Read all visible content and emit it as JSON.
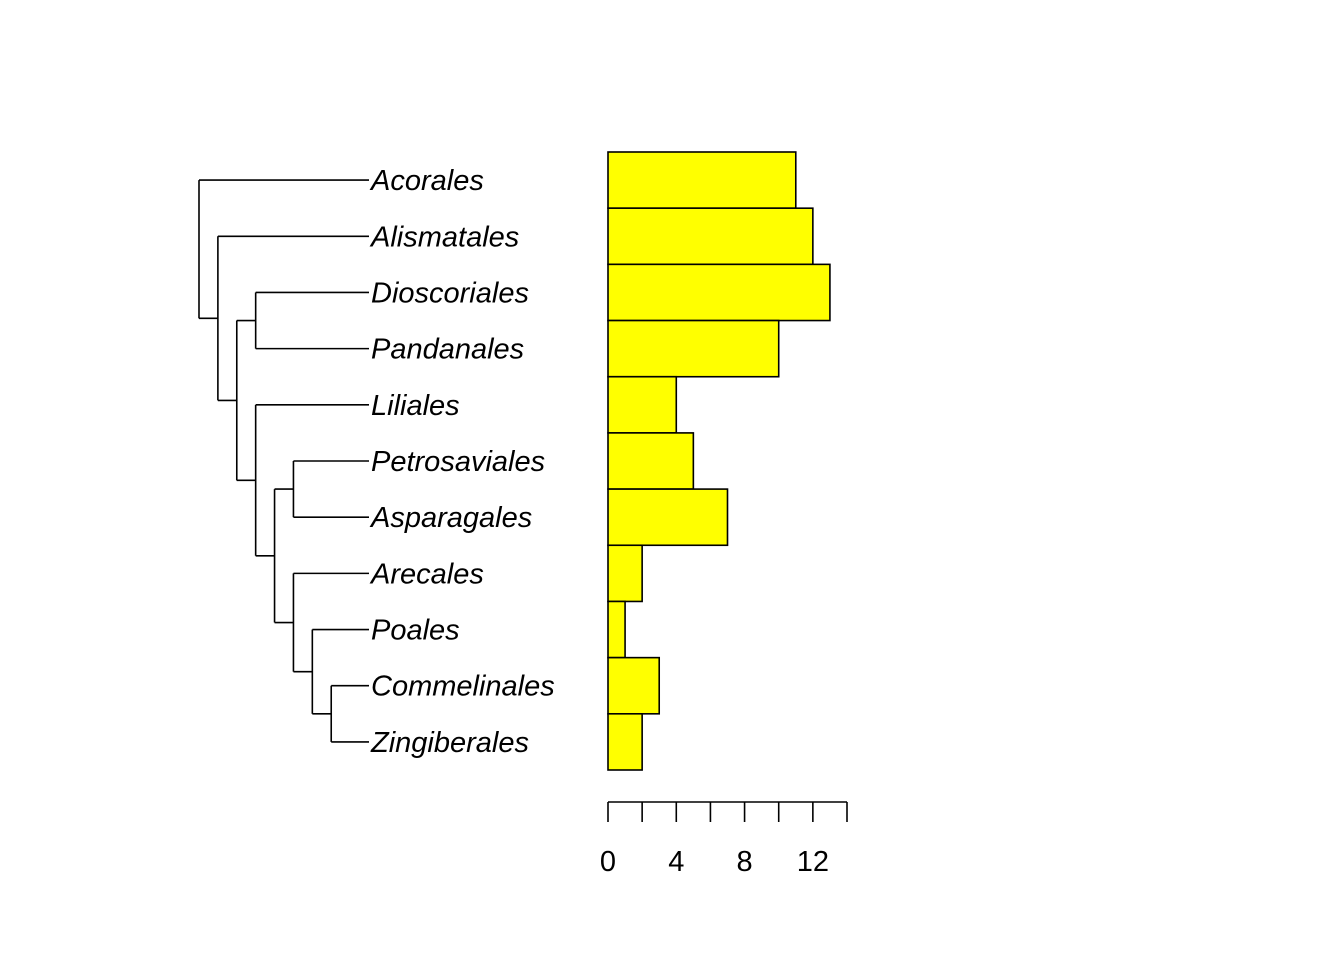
{
  "chart_data": {
    "type": "bar",
    "orientation": "horizontal",
    "categories": [
      "Acorales",
      "Alismatales",
      "Dioscoriales",
      "Pandanales",
      "Liliales",
      "Petrosaviales",
      "Asparagales",
      "Arecales",
      "Poales",
      "Commelinales",
      "Zingiberales"
    ],
    "values": [
      11,
      12,
      13,
      10,
      4,
      5,
      7,
      2,
      1,
      3,
      2
    ],
    "xlim": [
      0,
      14
    ],
    "x_ticks": [
      0,
      2,
      4,
      6,
      8,
      10,
      12,
      14
    ],
    "x_tick_labels": [
      "0",
      "4",
      "8",
      "12"
    ],
    "x_tick_label_values": [
      0,
      4,
      8,
      12
    ],
    "bar_color": "#ffff00",
    "tree": {
      "tips": [
        "Acorales",
        "Alismatales",
        "Dioscoriales",
        "Pandanales",
        "Liliales",
        "Petrosaviales",
        "Asparagales",
        "Arecales",
        "Poales",
        "Commelinales",
        "Zingiberales"
      ],
      "newick": "(Acorales,(Alismatales,((Dioscoriales,Pandanales),(Liliales,((Petrosaviales,Asparagales),(Arecales,(Poales,(Commelinales,Zingiberales))))))));"
    },
    "title": "",
    "xlabel": "",
    "ylabel": ""
  }
}
